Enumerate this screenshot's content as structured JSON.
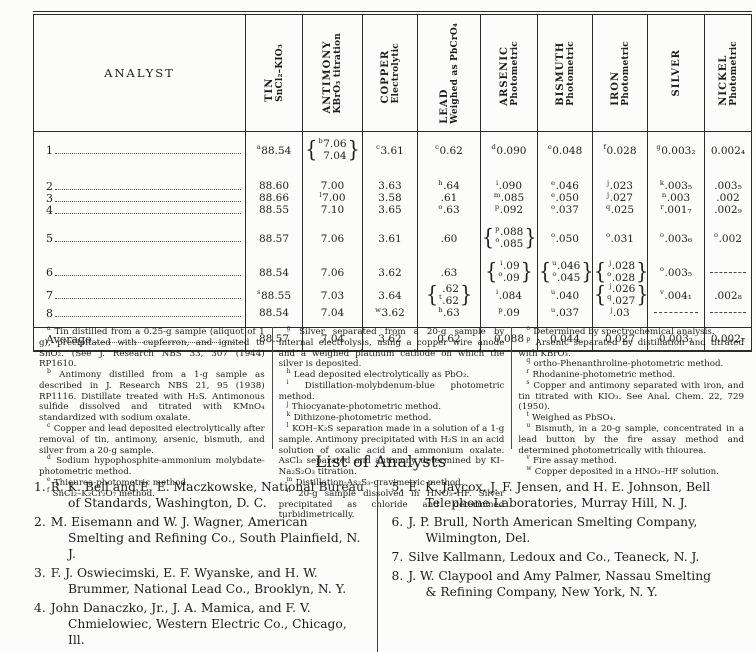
{
  "table": {
    "analyst_header": "ANALYST",
    "average_label": "Average",
    "columns": [
      {
        "element": "TIN",
        "method": "SnCl₂–KIO₃"
      },
      {
        "element": "ANTIMONY",
        "method": "KBrO₃ titration"
      },
      {
        "element": "COPPER",
        "method": "Electrolytic"
      },
      {
        "element": "LEAD",
        "method": "Weighed as PbCrO₄"
      },
      {
        "element": "ARSENIC",
        "method": "Photometric"
      },
      {
        "element": "BISMUTH",
        "method": "Photometric"
      },
      {
        "element": "IRON",
        "method": "Photometric"
      },
      {
        "element": "SILVER",
        "method": ""
      },
      {
        "element": "NICKEL",
        "method": "Photometric"
      }
    ],
    "rows": [
      {
        "label": "1",
        "cells": [
          {
            "s": "a",
            "v": "88.54"
          },
          {
            "pair": [
              {
                "s": "b",
                "v": "7.06"
              },
              {
                "v": "7.04"
              }
            ]
          },
          {
            "s": "c",
            "v": "3.61"
          },
          {
            "s": "c",
            "v": "0.62"
          },
          {
            "s": "d",
            "v": "0.090"
          },
          {
            "s": "e",
            "v": "0.048"
          },
          {
            "s": "f",
            "v": "0.028"
          },
          {
            "s": "g",
            "v": "0.003₂"
          },
          {
            "v": "0.002₄"
          }
        ]
      },
      {
        "label": "2",
        "cells": [
          {
            "v": "88.60"
          },
          {
            "v": "7.00"
          },
          {
            "v": "3.63"
          },
          {
            "s": "h",
            "v": ".64"
          },
          {
            "s": "i",
            "v": ".090"
          },
          {
            "s": "e",
            "v": ".046"
          },
          {
            "s": "j",
            "v": ".023"
          },
          {
            "s": "k",
            "v": ".003₅"
          },
          {
            "v": ".003₅"
          }
        ]
      },
      {
        "label": "3",
        "cells": [
          {
            "v": "88.66"
          },
          {
            "s": "l",
            "v": "7.00"
          },
          {
            "v": "3.58"
          },
          {
            "v": ".61"
          },
          {
            "s": "m",
            "v": ".085"
          },
          {
            "s": "e",
            "v": ".050"
          },
          {
            "s": "j",
            "v": ".027"
          },
          {
            "s": "n",
            "v": ".003"
          },
          {
            "v": ".002"
          }
        ]
      },
      {
        "label": "4",
        "cells": [
          {
            "v": "88.55"
          },
          {
            "v": "7.10"
          },
          {
            "v": "3.65"
          },
          {
            "s": "o",
            "v": ".63"
          },
          {
            "s": "p",
            "v": ".092"
          },
          {
            "s": "o",
            "v": ".037"
          },
          {
            "s": "q",
            "v": ".025"
          },
          {
            "s": "r",
            "v": ".001₇"
          },
          {
            "v": ".002₉"
          }
        ]
      },
      {
        "label": "5",
        "cells": [
          {
            "v": "88.57"
          },
          {
            "v": "7.06"
          },
          {
            "v": "3.61"
          },
          {
            "v": ".60"
          },
          {
            "pair": [
              {
                "s": "p",
                "v": ".088"
              },
              {
                "s": "o",
                "v": ".085"
              }
            ]
          },
          {
            "s": "o",
            "v": ".050"
          },
          {
            "s": "o",
            "v": ".031"
          },
          {
            "s": "o",
            "v": ".003₆"
          },
          {
            "s": "o",
            "v": ".002"
          }
        ]
      },
      {
        "label": "6",
        "cells": [
          {
            "v": "88.54"
          },
          {
            "v": "7.06"
          },
          {
            "v": "3.62"
          },
          {
            "v": ".63"
          },
          {
            "pair": [
              {
                "s": "i",
                "v": ".09"
              },
              {
                "s": "o",
                "v": ".09"
              }
            ]
          },
          {
            "pair": [
              {
                "s": "u",
                "v": ".046"
              },
              {
                "s": "o",
                "v": ".045"
              }
            ]
          },
          {
            "pair": [
              {
                "s": "j",
                "v": ".028"
              },
              {
                "s": "o",
                "v": ".028"
              }
            ]
          },
          {
            "s": "o",
            "v": ".003₅"
          },
          {
            "dash": true
          }
        ]
      },
      {
        "label": "7",
        "cells": [
          {
            "s": "s",
            "v": "88.55"
          },
          {
            "v": "7.03"
          },
          {
            "v": "3.64"
          },
          {
            "pair": [
              {
                "v": ".62"
              },
              {
                "s": "t",
                "v": ".62"
              }
            ]
          },
          {
            "s": "i",
            "v": ".084"
          },
          {
            "s": "u",
            "v": ".040"
          },
          {
            "pair": [
              {
                "s": "j",
                "v": ".026"
              },
              {
                "s": "q",
                "v": ".027"
              }
            ]
          },
          {
            "s": "v",
            "v": ".004₁"
          },
          {
            "v": ".002₈"
          }
        ]
      },
      {
        "label": "8",
        "cells": [
          {
            "v": "88.54"
          },
          {
            "v": "7.04"
          },
          {
            "s": "w",
            "v": "3.62"
          },
          {
            "s": "h",
            "v": ".63"
          },
          {
            "s": "p",
            "v": ".09"
          },
          {
            "s": "u",
            "v": ".037"
          },
          {
            "s": "j",
            "v": ".03"
          },
          {
            "dash": true
          },
          {
            "dash": true
          }
        ]
      }
    ],
    "average": {
      "label": "Average",
      "cells": [
        {
          "v": "88.57"
        },
        {
          "v": "7.04"
        },
        {
          "v": "3.62"
        },
        {
          "v": "0.62"
        },
        {
          "v": "0.088"
        },
        {
          "v": "0.044"
        },
        {
          "v": "0.027"
        },
        {
          "v": "0.003₂"
        },
        {
          "v": "0.002₇"
        }
      ]
    }
  },
  "footnotes": {
    "columns": [
      [
        {
          "m": "a",
          "t": "Tin distilled from a 0.25-g sample (aliquot of 1 g), precipitated with cupferron, and ignited to SnO₂. (See J. Research NBS 33, 307 (1944) RP1610."
        },
        {
          "m": "b",
          "t": "Antimony distilled from a 1-g sample as described in J. Research NBS 21, 95 (1938) RP1116. Distillate treated with H₂S. Antimonous sulfide dissolved and titrated with KMnO₄ standardized with sodium oxalate."
        },
        {
          "m": "c",
          "t": "Copper and lead deposited electrolytically after removal of tin, antimony, arsenic, bismuth, and silver from a 20-g sample."
        },
        {
          "m": "d",
          "t": "Sodium hypophosphite-ammonium molybdate-photometric method."
        },
        {
          "m": "e",
          "t": "Thiourea-photometric method."
        },
        {
          "m": "f",
          "t": "SnCl₂–K₂Cr₂O₇ method."
        }
      ],
      [
        {
          "m": "g",
          "t": "Silver separated from a 20-g sample by internal electrolysis, using a copper wire anode and a weighed platinum cathode on which the silver is deposited."
        },
        {
          "m": "h",
          "t": "Lead deposited electrolytically as PbO₂."
        },
        {
          "m": "i",
          "t": "Distillation-molybdenum-blue photometric method."
        },
        {
          "m": "j",
          "t": "Thiocyanate-photometric method."
        },
        {
          "m": "k",
          "t": "Dithizone-photometric method."
        },
        {
          "m": "l",
          "t": "KOH–K₂S separation made in a solution of a 1-g sample. Antimony precipitated with H₂S in an acid solution of oxalic acid and ammonium oxalate. AsCl₃ separated and antimony determined by KI–Na₂S₂O₃ titration."
        },
        {
          "m": "m",
          "t": "Distillation-As₂S₃-gravimetric method."
        },
        {
          "m": "n",
          "t": "20-g sample dissolved in HNO₃–HF. Silver precipitated as chloride and determined turbidimetrically."
        }
      ],
      [
        {
          "m": "o",
          "t": "Determined by spectrochemical analysis."
        },
        {
          "m": "p",
          "t": "Arsenic separated by distillation and titrated with KBrO₃."
        },
        {
          "m": "q",
          "t": "ortho-Phenanthroline-photometric method."
        },
        {
          "m": "r",
          "t": "Rhodanine-photometric method."
        },
        {
          "m": "s",
          "t": "Copper and antimony separated with iron, and tin titrated with KIO₃. See Anal. Chem. 22, 729 (1950)."
        },
        {
          "m": "t",
          "t": "Weighed as PbSO₄."
        },
        {
          "m": "u",
          "t": "Bismuth, in a 20-g sample, concentrated in a lead button by the fire assay method and determined photometrically with thiourea."
        },
        {
          "m": "v",
          "t": "Fire assay method."
        },
        {
          "m": "w",
          "t": "Copper deposited in a HNO₃–HF solution."
        }
      ]
    ]
  },
  "analysts": {
    "title": "List of Analysts",
    "left": [
      {
        "num": "1.",
        "text": "R. K. Bell and E. E. Maczkowske, National Bureau of Standards, Washington, D. C."
      },
      {
        "num": "2.",
        "text": "M. Eisemann and W. J. Wagner, American Smelting and Refining Co., South Plainfield, N. J."
      },
      {
        "num": "3.",
        "text": "F. J. Oswiecimski, E. F. Wyanske, and H. W. Brummer, National Lead Co., Brooklyn, N. Y."
      },
      {
        "num": "4.",
        "text": "John Danaczko, Jr., J. A. Mamica, and F. V. Chmielowiec, Western Electric Co., Chicago, Ill."
      }
    ],
    "right": [
      {
        "num": "5.",
        "text": "E. K. Jaycox, J. F. Jensen, and H. E. Johnson, Bell Telephone Laboratories, Murray Hill, N. J."
      },
      {
        "num": "6.",
        "text": "J. P. Brull, North American Smelting Company, Wilmington, Del."
      },
      {
        "num": "7.",
        "text": "Silve Kallmann, Ledoux and Co., Teaneck, N. J."
      },
      {
        "num": "8.",
        "text": "J. W. Claypool and Amy Palmer, Nassau Smelting & Refining Company, New York, N. Y."
      }
    ]
  }
}
